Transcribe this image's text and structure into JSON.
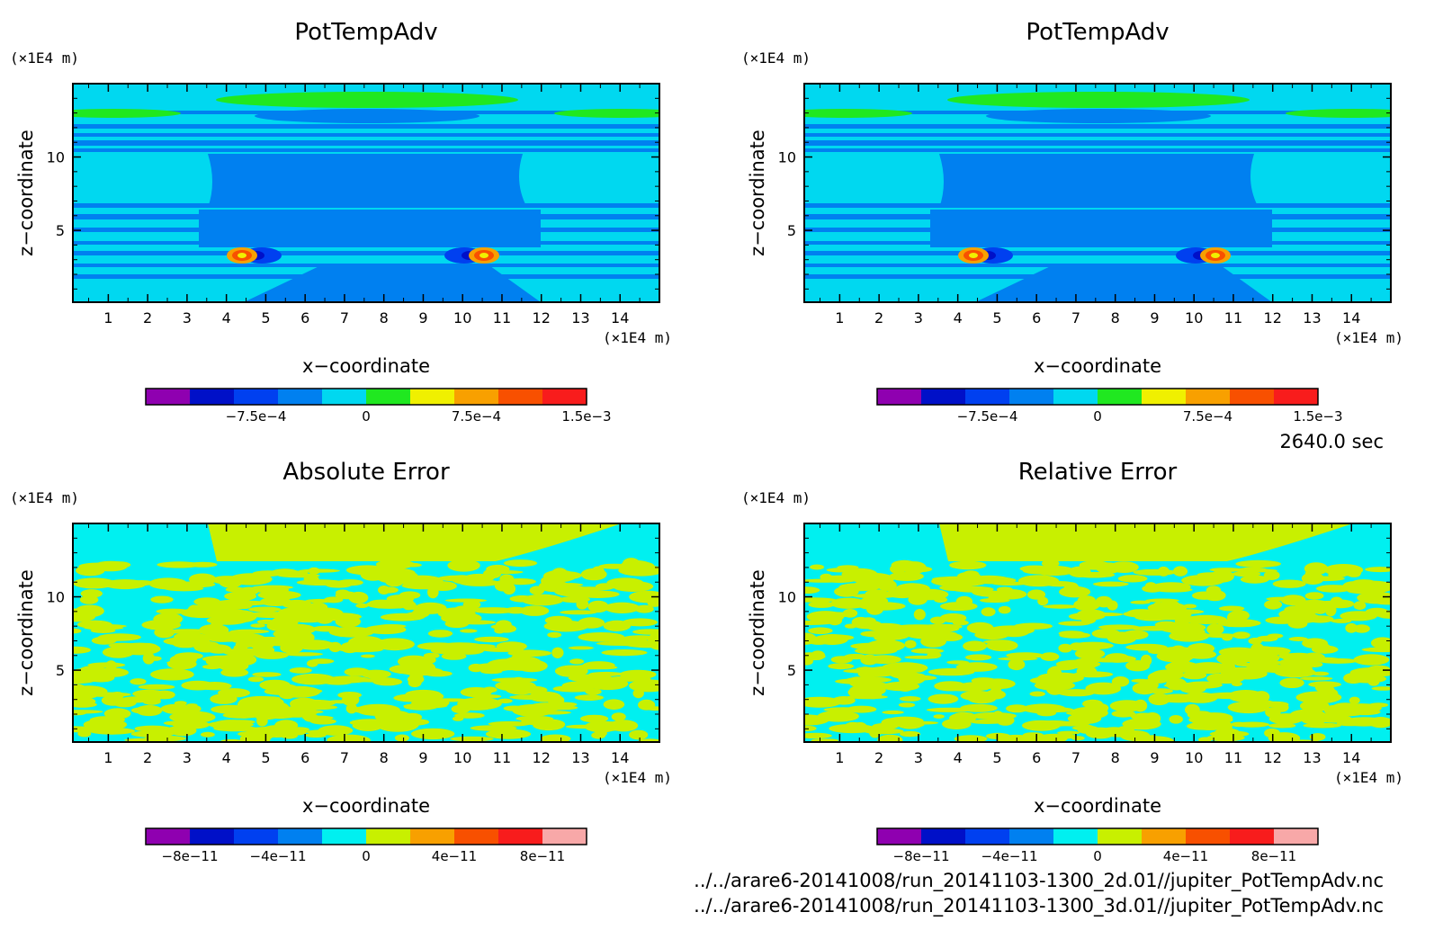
{
  "time_label": "2640.0 sec",
  "files": [
    "../../arare6-20141008/run_20141103-1300_2d.01//jupiter_PotTempAdv.nc",
    "../../arare6-20141008/run_20141103-1300_3d.01//jupiter_PotTempAdv.nc"
  ],
  "chart_data": [
    {
      "type": "heatmap",
      "title": "PotTempAdv",
      "xlabel": "x−coordinate",
      "ylabel": "z−coordinate",
      "x_unit": "(×1E4 m)",
      "y_unit": "(×1E4 m)",
      "xlim": [
        0.1,
        15
      ],
      "ylim": [
        0.1,
        15
      ],
      "xticks": [
        "1",
        "2",
        "3",
        "4",
        "5",
        "6",
        "7",
        "8",
        "9",
        "10",
        "11",
        "12",
        "13",
        "14"
      ],
      "yticks": [
        "5",
        "10"
      ],
      "colorbar": {
        "colors": [
          "#8f00b0",
          "#0010c8",
          "#0040f0",
          "#0080f0",
          "#00d8f0",
          "#20e820",
          "#f0f000",
          "#f8a000",
          "#f85000",
          "#f81c1c"
        ],
        "ticks": [
          "−7.5e−4",
          "0",
          "7.5e−4",
          "1.5e−3"
        ],
        "range": [
          -0.0015,
          0.0015
        ]
      }
    },
    {
      "type": "heatmap",
      "title": "PotTempAdv",
      "xlabel": "x−coordinate",
      "ylabel": "z−coordinate",
      "x_unit": "(×1E4 m)",
      "y_unit": "(×1E4 m)",
      "xlim": [
        0.1,
        15
      ],
      "ylim": [
        0.1,
        15
      ],
      "xticks": [
        "1",
        "2",
        "3",
        "4",
        "5",
        "6",
        "7",
        "8",
        "9",
        "10",
        "11",
        "12",
        "13",
        "14"
      ],
      "yticks": [
        "5",
        "10"
      ],
      "colorbar": {
        "colors": [
          "#8f00b0",
          "#0010c8",
          "#0040f0",
          "#0080f0",
          "#00d8f0",
          "#20e820",
          "#f0f000",
          "#f8a000",
          "#f85000",
          "#f81c1c"
        ],
        "ticks": [
          "−7.5e−4",
          "0",
          "7.5e−4",
          "1.5e−3"
        ],
        "range": [
          -0.0015,
          0.0015
        ]
      }
    },
    {
      "type": "heatmap",
      "title": "Absolute Error",
      "xlabel": "x−coordinate",
      "ylabel": "z−coordinate",
      "x_unit": "(×1E4 m)",
      "y_unit": "(×1E4 m)",
      "xlim": [
        0.1,
        15
      ],
      "ylim": [
        0.1,
        15
      ],
      "xticks": [
        "1",
        "2",
        "3",
        "4",
        "5",
        "6",
        "7",
        "8",
        "9",
        "10",
        "11",
        "12",
        "13",
        "14"
      ],
      "yticks": [
        "5",
        "10"
      ],
      "colorbar": {
        "colors": [
          "#8f00b0",
          "#0010c8",
          "#0040f0",
          "#0080f0",
          "#00f0f0",
          "#c8f000",
          "#f8a000",
          "#f85000",
          "#f81c1c",
          "#f8a8a8"
        ],
        "ticks": [
          "−8e−11",
          "−4e−11",
          "0",
          "4e−11",
          "8e−11"
        ],
        "range": [
          -1e-10,
          1e-10
        ]
      }
    },
    {
      "type": "heatmap",
      "title": "Relative Error",
      "xlabel": "x−coordinate",
      "ylabel": "z−coordinate",
      "x_unit": "(×1E4 m)",
      "y_unit": "(×1E4 m)",
      "xlim": [
        0.1,
        15
      ],
      "ylim": [
        0.1,
        15
      ],
      "xticks": [
        "1",
        "2",
        "3",
        "4",
        "5",
        "6",
        "7",
        "8",
        "9",
        "10",
        "11",
        "12",
        "13",
        "14"
      ],
      "yticks": [
        "5",
        "10"
      ],
      "colorbar": {
        "colors": [
          "#8f00b0",
          "#0010c8",
          "#0040f0",
          "#0080f0",
          "#00f0f0",
          "#c8f000",
          "#f8a000",
          "#f85000",
          "#f81c1c",
          "#f8a8a8"
        ],
        "ticks": [
          "−8e−11",
          "−4e−11",
          "0",
          "4e−11",
          "8e−11"
        ],
        "range": [
          -1e-10,
          1e-10
        ]
      }
    }
  ]
}
